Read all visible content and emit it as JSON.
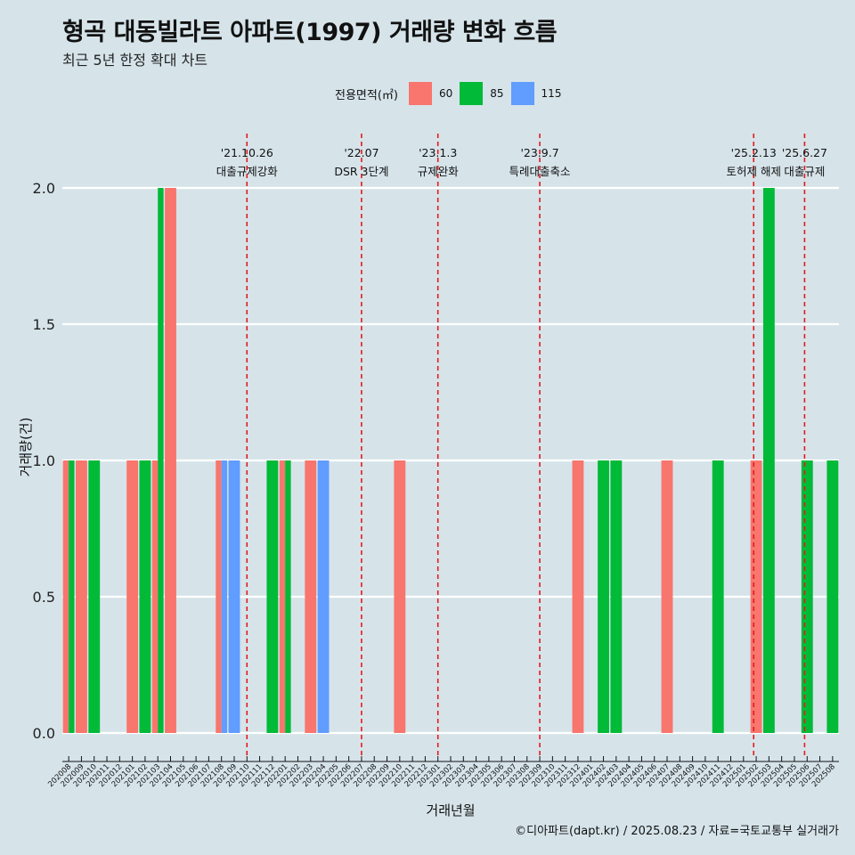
{
  "title": "형곡 대동빌라트 아파트(1997) 거래량 변화 흐름",
  "subtitle": "최근 5년 한정 확대 차트",
  "credit": "©디아파트(dapt.kr) / 2025.08.23 / 자료=국토교통부 실거래가",
  "legend": {
    "title": "전용면적(㎡)",
    "items": [
      {
        "label": "60",
        "color": "#f8766d"
      },
      {
        "label": "85",
        "color": "#00ba38"
      },
      {
        "label": "115",
        "color": "#619cff"
      }
    ]
  },
  "chart_data": {
    "type": "bar",
    "xlabel": "거래년월",
    "ylabel": "거래량(건)",
    "ylim": [
      0,
      2
    ],
    "yticks": [
      "0.0",
      "0.5",
      "1.0",
      "1.5",
      "2.0"
    ],
    "categories": [
      "202008",
      "202009",
      "202010",
      "202011",
      "202012",
      "202101",
      "202102",
      "202103",
      "202104",
      "202105",
      "202106",
      "202107",
      "202108",
      "202109",
      "202110",
      "202111",
      "202112",
      "202201",
      "202202",
      "202203",
      "202204",
      "202205",
      "202206",
      "202207",
      "202208",
      "202209",
      "202210",
      "202211",
      "202212",
      "202301",
      "202302",
      "202303",
      "202304",
      "202305",
      "202306",
      "202307",
      "202308",
      "202309",
      "202310",
      "202311",
      "202312",
      "202401",
      "202402",
      "202403",
      "202404",
      "202405",
      "202406",
      "202407",
      "202408",
      "202409",
      "202410",
      "202411",
      "202412",
      "202501",
      "202502",
      "202503",
      "202504",
      "202505",
      "202506",
      "202507",
      "202508"
    ],
    "series": [
      {
        "name": "60",
        "color": "#f8766d",
        "values": [
          1,
          1,
          0,
          0,
          0,
          1,
          0,
          1,
          2,
          0,
          0,
          0,
          1,
          0,
          0,
          0,
          0,
          1,
          0,
          1,
          0,
          0,
          0,
          0,
          0,
          0,
          1,
          0,
          0,
          0,
          0,
          0,
          0,
          0,
          0,
          0,
          0,
          0,
          0,
          0,
          1,
          0,
          0,
          0,
          0,
          0,
          0,
          1,
          0,
          0,
          0,
          0,
          0,
          0,
          1,
          0,
          0,
          0,
          0,
          0,
          0
        ]
      },
      {
        "name": "85",
        "color": "#00ba38",
        "values": [
          1,
          0,
          1,
          0,
          0,
          0,
          1,
          2,
          0,
          0,
          0,
          0,
          0,
          0,
          0,
          0,
          1,
          1,
          0,
          0,
          0,
          0,
          0,
          0,
          0,
          0,
          0,
          0,
          0,
          0,
          0,
          0,
          0,
          0,
          0,
          0,
          0,
          0,
          0,
          0,
          0,
          0,
          1,
          1,
          0,
          0,
          0,
          0,
          0,
          0,
          0,
          1,
          0,
          0,
          0,
          2,
          0,
          0,
          1,
          0,
          1
        ]
      },
      {
        "name": "115",
        "color": "#619cff",
        "values": [
          0,
          0,
          0,
          0,
          0,
          0,
          0,
          0,
          0,
          0,
          0,
          0,
          1,
          1,
          0,
          0,
          0,
          0,
          0,
          0,
          1,
          0,
          0,
          0,
          0,
          0,
          0,
          0,
          0,
          0,
          0,
          0,
          0,
          0,
          0,
          0,
          0,
          0,
          0,
          0,
          0,
          0,
          0,
          0,
          0,
          0,
          0,
          0,
          0,
          0,
          0,
          0,
          0,
          0,
          0,
          0,
          0,
          0,
          0,
          0,
          0
        ]
      }
    ],
    "events": [
      {
        "date": "'21.10.26",
        "label": "대출규제강화",
        "x": 14.5
      },
      {
        "date": "'22.07",
        "label": "DSR 3단계",
        "x": 23.5
      },
      {
        "date": "'23.1.3",
        "label": "규제완화",
        "x": 29.5
      },
      {
        "date": "'23.9.7",
        "label": "특례대출축소",
        "x": 37.5
      },
      {
        "date": "'25.2.13",
        "label": "토허제 해제",
        "x": 54.3
      },
      {
        "date": "'25.6.27",
        "label": "대출규제",
        "x": 58.3
      }
    ],
    "grid": true,
    "legend_position": "top"
  }
}
